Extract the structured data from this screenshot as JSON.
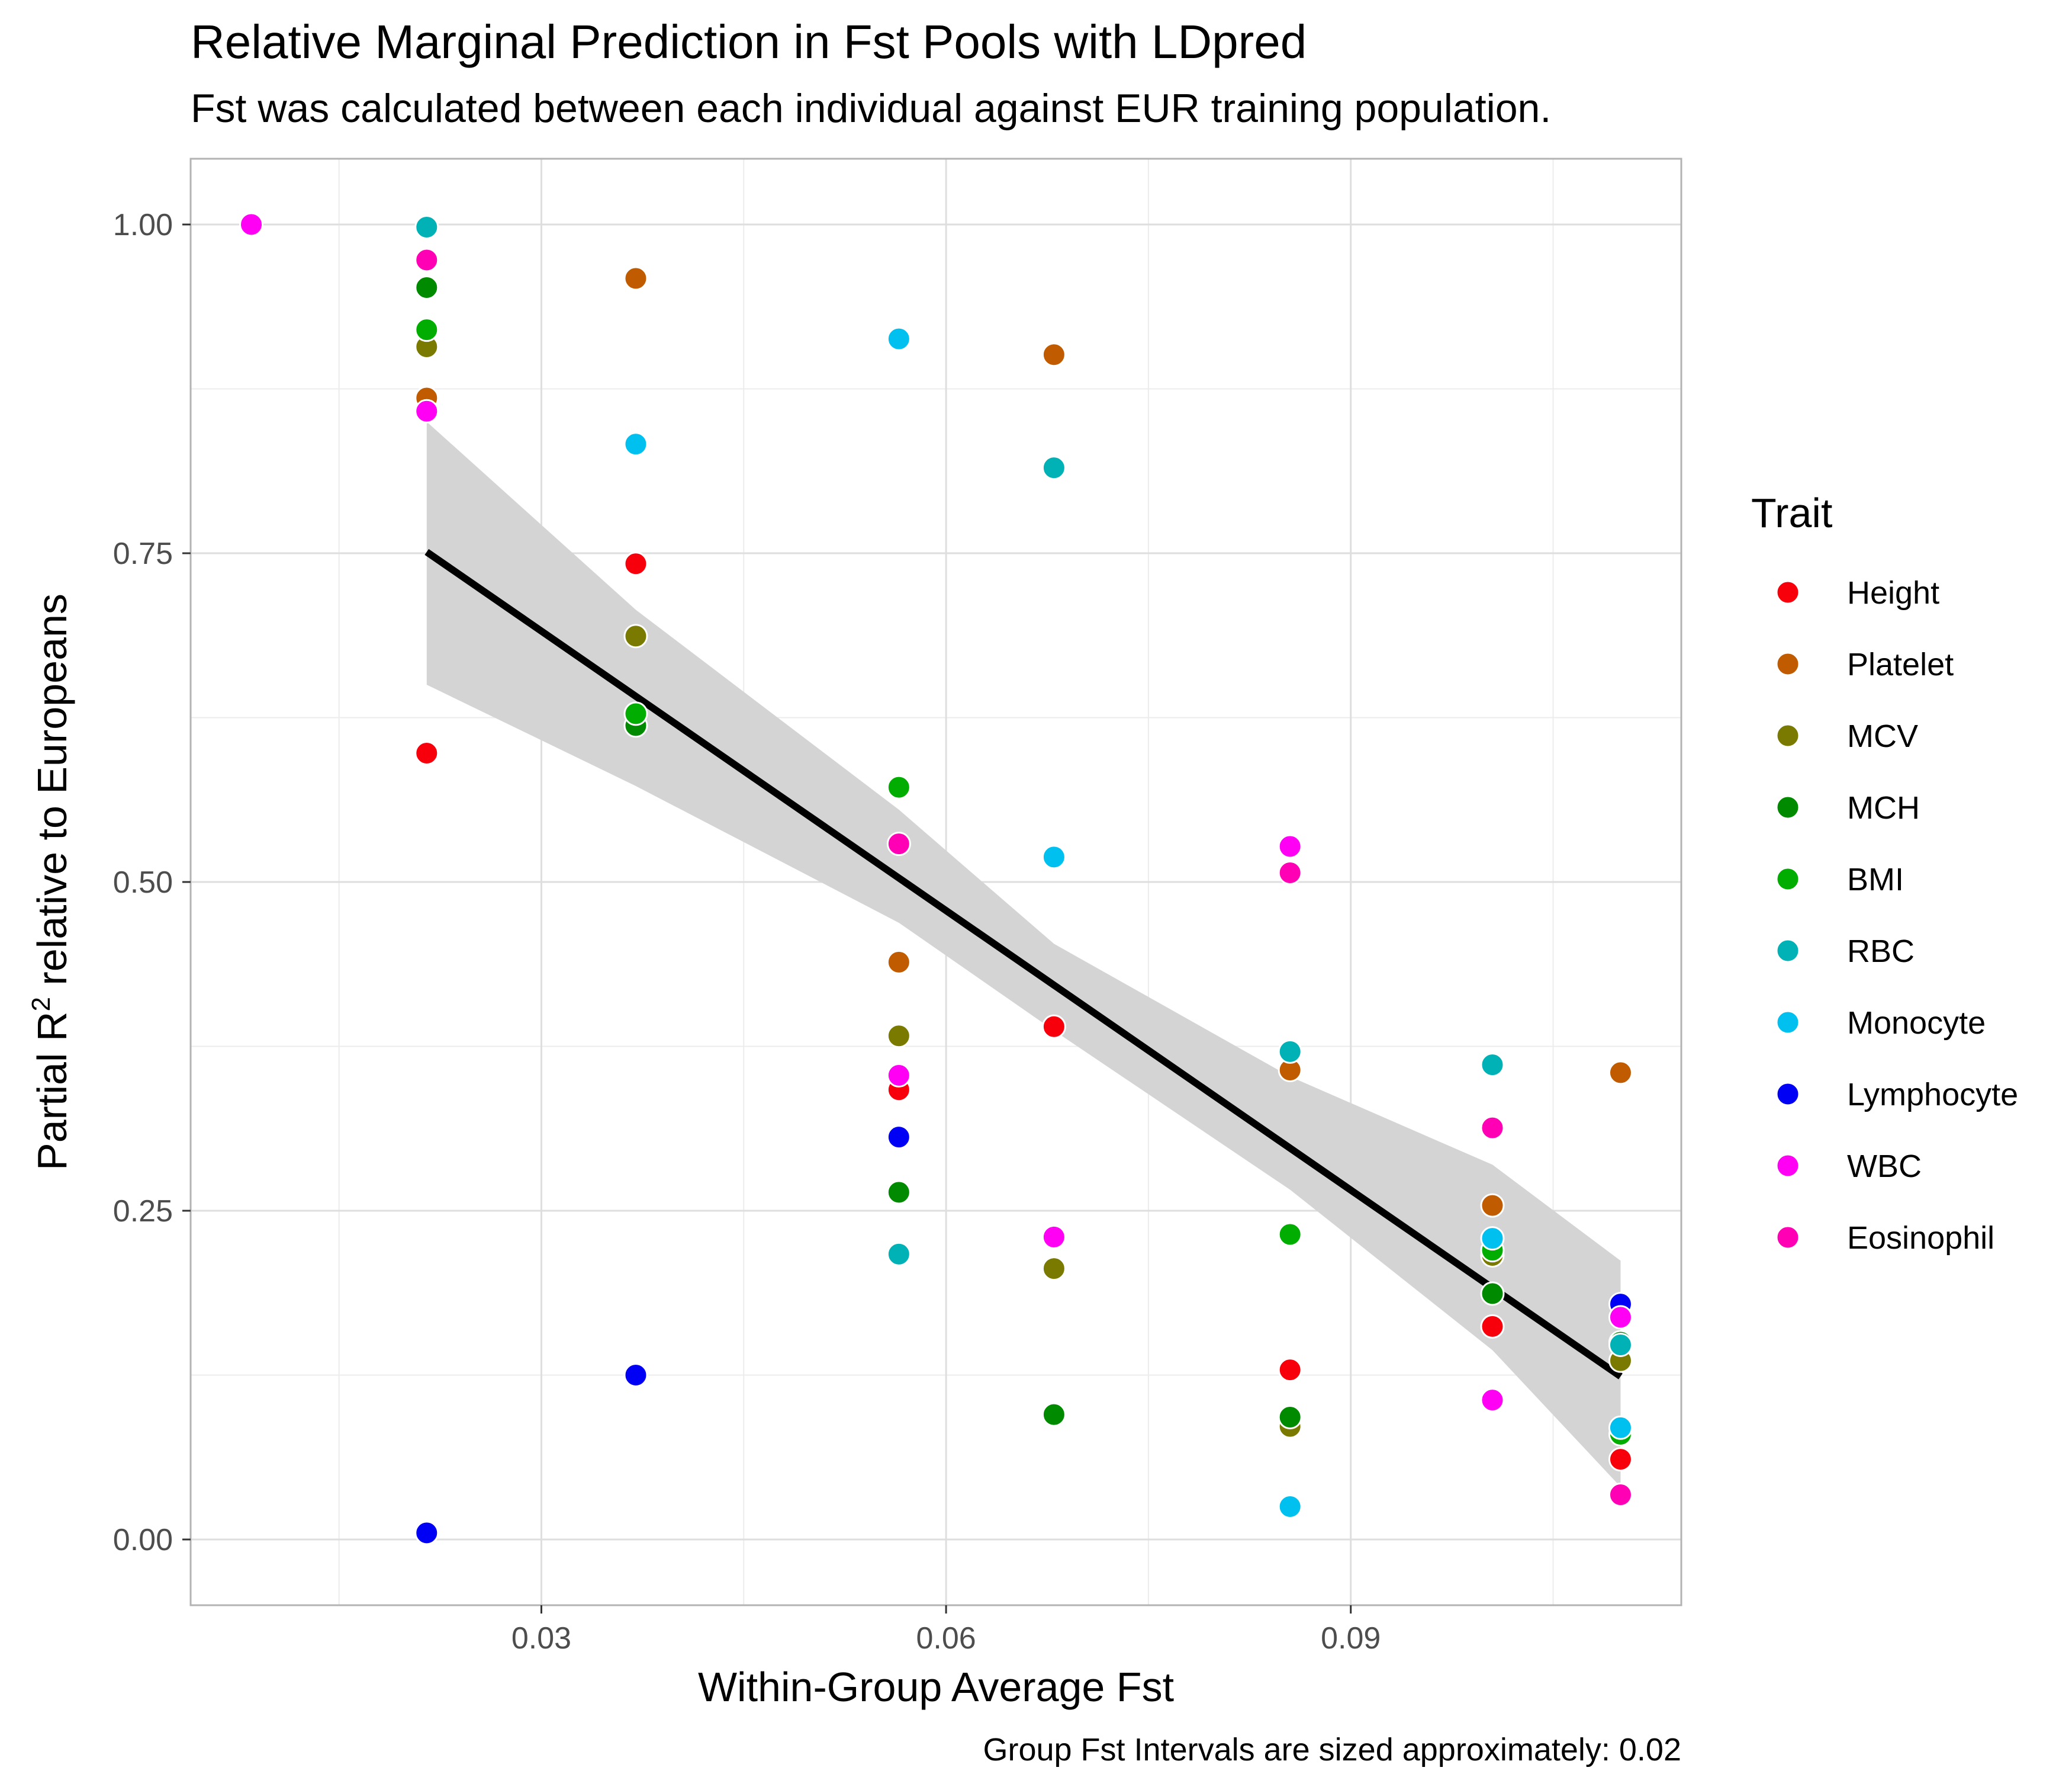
{
  "chart_data": {
    "type": "scatter",
    "title": "Relative Marginal Prediction in Fst Pools with LDpred",
    "subtitle": "Fst was calculated between each individual against EUR training population.",
    "xlabel": "Within-Group Average Fst",
    "ylabel": {
      "prefix": "Partial R",
      "sup": "2",
      "suffix": " relative to Europeans"
    },
    "caption": "Group Fst Intervals are sized approximately: 0.02",
    "xlim": [
      0.004,
      0.1145
    ],
    "ylim": [
      -0.05,
      1.05
    ],
    "x_ticks": [
      {
        "value": 0.03,
        "label": "0.03"
      },
      {
        "value": 0.06,
        "label": "0.06"
      },
      {
        "value": 0.09,
        "label": "0.09"
      }
    ],
    "y_ticks": [
      {
        "value": 0,
        "label": "0.00"
      },
      {
        "value": 0.25,
        "label": "0.25"
      },
      {
        "value": 0.5,
        "label": "0.50"
      },
      {
        "value": 0.75,
        "label": "0.75"
      },
      {
        "value": 1,
        "label": "1.00"
      }
    ],
    "grid": true,
    "legend": {
      "title": "Trait",
      "position": "right"
    },
    "series": [
      {
        "name": "Height",
        "color": "#F8000B",
        "points": [
          [
            0.0215,
            0.598
          ],
          [
            0.037,
            0.742
          ],
          [
            0.0565,
            0.342
          ],
          [
            0.068,
            0.39
          ],
          [
            0.0855,
            0.129
          ],
          [
            0.1005,
            0.162
          ],
          [
            0.11,
            0.061
          ]
        ]
      },
      {
        "name": "Platelet",
        "color": "#C05B00",
        "points": [
          [
            0.0215,
            0.868
          ],
          [
            0.037,
            0.959
          ],
          [
            0.0565,
            0.439
          ],
          [
            0.068,
            0.901
          ],
          [
            0.0855,
            0.357
          ],
          [
            0.1005,
            0.254
          ],
          [
            0.11,
            0.355
          ]
        ]
      },
      {
        "name": "MCV",
        "color": "#7B7A00",
        "points": [
          [
            0.0215,
            0.907
          ],
          [
            0.037,
            0.687
          ],
          [
            0.0565,
            0.383
          ],
          [
            0.068,
            0.206
          ],
          [
            0.0855,
            0.086
          ],
          [
            0.1005,
            0.216
          ],
          [
            0.11,
            0.136
          ]
        ]
      },
      {
        "name": "MCH",
        "color": "#008A00",
        "points": [
          [
            0.0215,
            0.952
          ],
          [
            0.037,
            0.619
          ],
          [
            0.0565,
            0.264
          ],
          [
            0.068,
            0.095
          ],
          [
            0.0855,
            0.093
          ],
          [
            0.1005,
            0.187
          ],
          [
            0.11,
            0.15
          ]
        ]
      },
      {
        "name": "BMI",
        "color": "#00AD00",
        "points": [
          [
            0.0215,
            0.92
          ],
          [
            0.037,
            0.628
          ],
          [
            0.0565,
            0.572
          ],
          [
            0.0855,
            0.232
          ],
          [
            0.1005,
            0.22
          ],
          [
            0.11,
            0.08
          ]
        ]
      },
      {
        "name": "RBC",
        "color": "#00B1B5",
        "points": [
          [
            0.0215,
            0.998
          ],
          [
            0.0565,
            0.217
          ],
          [
            0.068,
            0.815
          ],
          [
            0.0855,
            0.371
          ],
          [
            0.1005,
            0.361
          ],
          [
            0.11,
            0.148
          ]
        ]
      },
      {
        "name": "Monocyte",
        "color": "#00C0F0",
        "points": [
          [
            0.037,
            0.833
          ],
          [
            0.0565,
            0.913
          ],
          [
            0.068,
            0.519
          ],
          [
            0.0855,
            0.025
          ],
          [
            0.1005,
            0.229
          ],
          [
            0.11,
            0.085
          ]
        ]
      },
      {
        "name": "Lymphocyte",
        "color": "#0000F5",
        "points": [
          [
            0.0215,
            0.005
          ],
          [
            0.037,
            0.125
          ],
          [
            0.0565,
            0.306
          ],
          [
            0.11,
            0.179
          ]
        ]
      },
      {
        "name": "WBC",
        "color": "#FF00F5",
        "points": [
          [
            0.0085,
            1.0
          ],
          [
            0.0215,
            0.858
          ],
          [
            0.0565,
            0.353
          ],
          [
            0.068,
            0.23
          ],
          [
            0.0855,
            0.527
          ],
          [
            0.1005,
            0.106
          ],
          [
            0.11,
            0.169
          ]
        ]
      },
      {
        "name": "Eosinophil",
        "color": "#FF00B4",
        "points": [
          [
            0.0215,
            0.973
          ],
          [
            0.0565,
            0.529
          ],
          [
            0.0855,
            0.507
          ],
          [
            0.1005,
            0.313
          ],
          [
            0.11,
            0.034
          ]
        ]
      }
    ],
    "trend": {
      "method": "linear fit",
      "color": "#000000",
      "band_color": "#D4D4D4",
      "line": [
        [
          0.0215,
          0.751
        ],
        [
          0.11,
          0.124
        ]
      ],
      "band": [
        [
          0.0215,
          0.85,
          0.65
        ],
        [
          0.037,
          0.707,
          0.573
        ],
        [
          0.0565,
          0.555,
          0.469
        ],
        [
          0.068,
          0.453,
          0.387
        ],
        [
          0.0855,
          0.352,
          0.266
        ],
        [
          0.1005,
          0.285,
          0.144
        ],
        [
          0.11,
          0.212,
          0.04
        ]
      ]
    }
  }
}
